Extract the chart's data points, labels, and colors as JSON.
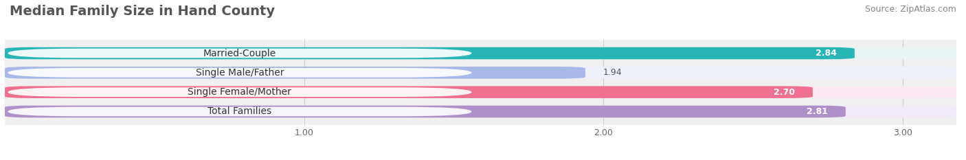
{
  "title": "Median Family Size in Hand County",
  "source": "Source: ZipAtlas.com",
  "categories": [
    "Married-Couple",
    "Single Male/Father",
    "Single Female/Mother",
    "Total Families"
  ],
  "values": [
    2.84,
    1.94,
    2.7,
    2.81
  ],
  "bar_colors": [
    "#29b5b5",
    "#a8b8e8",
    "#f07090",
    "#b090c8"
  ],
  "bar_bg_colors": [
    "#e8f5f5",
    "#eef0fa",
    "#fce8f2",
    "#f2eafa"
  ],
  "value_inside": [
    true,
    false,
    true,
    true
  ],
  "xlim": [
    0,
    3.18
  ],
  "xmin": 0,
  "xticks": [
    1.0,
    2.0,
    3.0
  ],
  "xtick_labels": [
    "1.00",
    "2.00",
    "3.00"
  ],
  "background_color": "#ffffff",
  "plot_bg_color": "#f0f0f0",
  "title_fontsize": 14,
  "source_fontsize": 9,
  "label_fontsize": 10,
  "value_fontsize": 9
}
